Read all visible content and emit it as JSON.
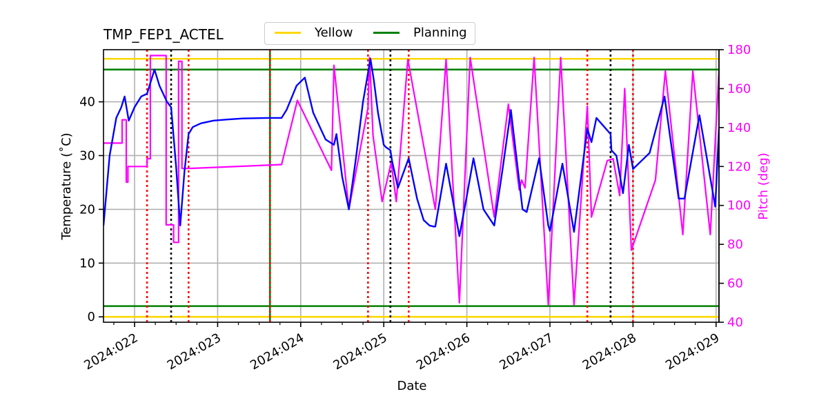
{
  "chart_data": {
    "type": "line",
    "title": "TMP_FEP1_ACTEL",
    "xlabel": "Date",
    "ylabel": "Temperature ($^\\circ$C)",
    "ylabel_display": "Temperature (˚C)",
    "y2label": "Pitch (deg)",
    "xlim_day": [
      21.626,
      29.035
    ],
    "ylim": [
      -1,
      49.7
    ],
    "y2lim": [
      40,
      180
    ],
    "grid": true,
    "legend_position": "top center (outside axes)",
    "legend": [
      {
        "label": "Yellow",
        "color": "#FFD700"
      },
      {
        "label": "Planning",
        "color": "#008000"
      }
    ],
    "x_ticks": [
      {
        "day": 22,
        "label": "2024:022"
      },
      {
        "day": 23,
        "label": "2024:023"
      },
      {
        "day": 24,
        "label": "2024:024"
      },
      {
        "day": 25,
        "label": "2024:025"
      },
      {
        "day": 26,
        "label": "2024:026"
      },
      {
        "day": 27,
        "label": "2024:027"
      },
      {
        "day": 28,
        "label": "2024:028"
      },
      {
        "day": 29,
        "label": "2024:029"
      }
    ],
    "y_ticks": [
      0,
      10,
      20,
      30,
      40
    ],
    "y2_ticks": [
      40,
      60,
      80,
      100,
      120,
      140,
      160,
      180
    ],
    "limit_lines": {
      "yellow_high": 48,
      "yellow_low": 0,
      "planning_high": 46,
      "planning_low": 2
    },
    "colors": {
      "temperature": "#0000FF",
      "pitch": "#FF00FF",
      "yellow": "#FFD700",
      "planning": "#008000",
      "red_vline": "#FF0000",
      "black_vline": "#000000",
      "grid": "#B0B0B0",
      "pitch_axis": "#FF00FF"
    },
    "vlines": [
      {
        "day": 22.15,
        "color": "red",
        "style": "dotted"
      },
      {
        "day": 22.44,
        "color": "black",
        "style": "dotted"
      },
      {
        "day": 22.65,
        "color": "red",
        "style": "dotted"
      },
      {
        "day": 23.63,
        "color": "green",
        "style": "solid"
      },
      {
        "day": 23.63,
        "color": "red",
        "style": "dotted"
      },
      {
        "day": 24.81,
        "color": "red",
        "style": "dotted"
      },
      {
        "day": 25.08,
        "color": "black",
        "style": "dotted"
      },
      {
        "day": 25.3,
        "color": "red",
        "style": "dotted"
      },
      {
        "day": 27.45,
        "color": "red",
        "style": "dotted"
      },
      {
        "day": 27.73,
        "color": "black",
        "style": "dotted"
      },
      {
        "day": 28.0,
        "color": "red",
        "style": "dotted"
      }
    ],
    "series": [
      {
        "name": "Temperature",
        "axis": "left",
        "color": "#0000FF",
        "x_day": [
          21.626,
          21.7,
          21.78,
          21.84,
          21.88,
          21.93,
          22.0,
          22.08,
          22.15,
          22.18,
          22.24,
          22.3,
          22.39,
          22.44,
          22.5,
          22.55,
          22.6,
          22.65,
          22.7,
          22.8,
          22.95,
          23.1,
          23.3,
          23.63,
          23.77,
          23.83,
          23.95,
          24.05,
          24.15,
          24.3,
          24.4,
          24.43,
          24.5,
          24.58,
          24.66,
          24.75,
          24.84,
          24.88,
          24.93,
          25.0,
          25.03,
          25.08,
          25.1,
          25.17,
          25.3,
          25.4,
          25.48,
          25.55,
          25.6,
          25.62,
          25.75,
          25.91,
          26.0,
          26.08,
          26.2,
          26.33,
          26.43,
          26.53,
          26.67,
          26.72,
          26.87,
          26.98,
          27.0,
          27.15,
          27.29,
          27.45,
          27.5,
          27.56,
          27.73,
          27.74,
          27.8,
          27.88,
          27.95,
          28.0,
          28.1,
          28.2,
          28.38,
          28.55,
          28.62,
          28.8,
          28.99,
          29.035
        ],
        "values": [
          17,
          30,
          37,
          39,
          41,
          36.5,
          39,
          41,
          41.5,
          43,
          46,
          43,
          40,
          39,
          28,
          17,
          27,
          34,
          35.3,
          36,
          36.5,
          36.7,
          36.9,
          37,
          37,
          38.5,
          43,
          44.5,
          38,
          33,
          32,
          34,
          26,
          20,
          29,
          40,
          48,
          44,
          38,
          32,
          31.5,
          31,
          29,
          24,
          29.5,
          22,
          18,
          17,
          16.8,
          16.8,
          28.5,
          15,
          22.5,
          29.5,
          20,
          17,
          27.5,
          38.5,
          20,
          19.5,
          29.5,
          17,
          16,
          28.5,
          15.8,
          35,
          32.5,
          37,
          34,
          31,
          30,
          23,
          32,
          27.5,
          29,
          30.5,
          41,
          22,
          22,
          37.5,
          20.5,
          35
        ]
      },
      {
        "name": "Pitch",
        "axis": "right",
        "color": "#FF00FF",
        "x_day": [
          21.626,
          21.85,
          21.85,
          21.9,
          21.9,
          21.92,
          21.92,
          21.96,
          21.96,
          22.15,
          22.15,
          22.19,
          22.19,
          22.38,
          22.38,
          22.47,
          22.47,
          22.53,
          22.53,
          22.57,
          22.57,
          22.66,
          22.66,
          23.77,
          23.77,
          23.96,
          23.96,
          24.37,
          24.37,
          24.4,
          24.4,
          24.58,
          24.58,
          24.81,
          24.81,
          24.83,
          24.83,
          24.87,
          24.87,
          24.98,
          24.98,
          25.09,
          25.09,
          25.15,
          25.15,
          25.29,
          25.29,
          25.62,
          25.62,
          25.75,
          25.75,
          25.91,
          25.91,
          26.04,
          26.04,
          26.33,
          26.33,
          26.5,
          26.5,
          26.63,
          26.63,
          26.66,
          26.66,
          26.7,
          26.7,
          26.81,
          26.81,
          26.98,
          26.98,
          27.13,
          27.13,
          27.29,
          27.29,
          27.45,
          27.45,
          27.5,
          27.5,
          27.69,
          27.69,
          27.76,
          27.76,
          27.84,
          27.84,
          27.9,
          27.9,
          27.98,
          27.98,
          28.27,
          28.27,
          28.39,
          28.39,
          28.6,
          28.6,
          28.72,
          28.72,
          28.93,
          28.93,
          29.035
        ],
        "values": [
          132,
          132,
          144,
          144,
          112,
          112,
          120,
          120,
          120,
          120,
          124,
          124,
          177,
          177,
          90,
          90,
          81,
          81,
          174,
          174,
          119,
          119,
          119,
          121,
          121,
          154,
          154,
          118,
          118,
          172,
          172,
          98,
          98,
          150,
          150,
          176,
          176,
          136,
          136,
          102,
          102,
          122,
          122,
          102,
          102,
          175,
          175,
          98,
          98,
          175,
          175,
          50,
          50,
          176,
          176,
          94,
          94,
          152,
          152,
          108,
          108,
          113,
          113,
          109,
          109,
          176,
          176,
          49,
          49,
          176,
          176,
          49,
          49,
          151,
          151,
          94,
          94,
          123,
          123,
          124,
          124,
          105,
          105,
          160,
          160,
          77,
          77,
          113,
          113,
          169,
          169,
          85,
          85,
          169,
          169,
          85,
          85,
          169
        ]
      }
    ]
  }
}
